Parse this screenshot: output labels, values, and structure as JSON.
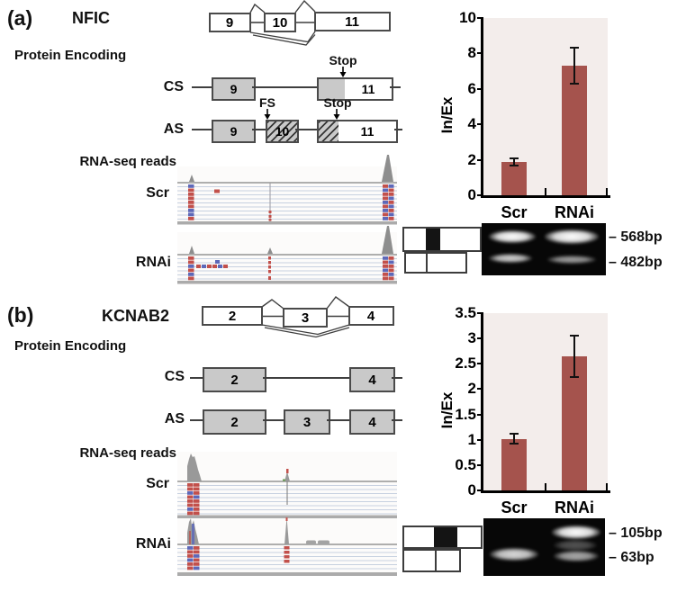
{
  "panels": {
    "a": {
      "panel_label": "(a)",
      "gene": "NFIC",
      "exons": [
        "9",
        "10",
        "11"
      ],
      "protein_encoding_label": "Protein Encoding",
      "cs_label": "CS",
      "as_label": "AS",
      "stop_label": "Stop",
      "fs_label": "FS",
      "rnaseq_label": "RNA-seq reads",
      "tracks": [
        "Scr",
        "RNAi"
      ],
      "gel_band_labels": [
        "– 568bp",
        "– 482bp"
      ]
    },
    "b": {
      "panel_label": "(b)",
      "gene": "KCNAB2",
      "exons": [
        "2",
        "3",
        "4"
      ],
      "protein_encoding_label": "Protein Encoding",
      "cs_label": "CS",
      "as_label": "AS",
      "rnaseq_label": "RNA-seq reads",
      "tracks": [
        "Scr",
        "RNAi"
      ],
      "gel_band_labels": [
        "– 105bp",
        "– 63bp"
      ]
    }
  },
  "chart_data": [
    {
      "type": "bar",
      "panel": "a",
      "title": "",
      "categories": [
        "Scr",
        "RNAi"
      ],
      "values": [
        1.9,
        7.3
      ],
      "errors": [
        0.2,
        1.0
      ],
      "ylabel": "In/Ex",
      "xlabel": "",
      "ylim": [
        0,
        10
      ],
      "yticks": [
        0,
        2,
        4,
        6,
        8,
        10
      ],
      "grid": false,
      "legend": "none",
      "bar_color": "#a5534d",
      "plot_bg": "#f3edeb"
    },
    {
      "type": "bar",
      "panel": "b",
      "title": "",
      "categories": [
        "Scr",
        "RNAi"
      ],
      "values": [
        1.02,
        2.65
      ],
      "errors": [
        0.1,
        0.41
      ],
      "ylabel": "In/Ex",
      "xlabel": "",
      "ylim": [
        0,
        3.5
      ],
      "yticks": [
        0,
        0.5,
        1,
        1.5,
        2,
        2.5,
        3,
        3.5
      ],
      "grid": false,
      "legend": "none",
      "bar_color": "#a5534d",
      "plot_bg": "#f3edeb"
    }
  ]
}
